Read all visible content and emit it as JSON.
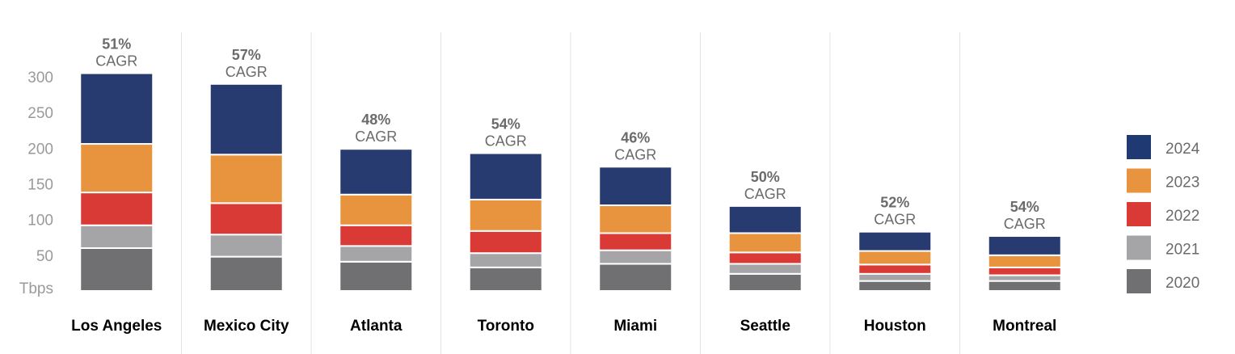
{
  "chart_data": {
    "type": "bar",
    "stacked": true,
    "yunit": "Tbps",
    "yticks": [
      "300",
      "250",
      "200",
      "150",
      "100",
      "50"
    ],
    "ylim": [
      0,
      300
    ],
    "categories": [
      "Los Angeles",
      "Mexico City",
      "Atlanta",
      "Toronto",
      "Miami",
      "Seattle",
      "Houston",
      "Montreal"
    ],
    "cagr": [
      {
        "pct": "51%",
        "label": "CAGR"
      },
      {
        "pct": "57%",
        "label": "CAGR"
      },
      {
        "pct": "48%",
        "label": "CAGR"
      },
      {
        "pct": "54%",
        "label": "CAGR"
      },
      {
        "pct": "46%",
        "label": "CAGR"
      },
      {
        "pct": "50%",
        "label": "CAGR"
      },
      {
        "pct": "52%",
        "label": "CAGR"
      },
      {
        "pct": "54%",
        "label": "CAGR"
      }
    ],
    "series": [
      {
        "name": "2020",
        "color": "#707073",
        "values": [
          60,
          48,
          41,
          33,
          38,
          24,
          14,
          14
        ]
      },
      {
        "name": "2021",
        "color": "#a5a5a8",
        "values": [
          32,
          31,
          22,
          20,
          19,
          14,
          10,
          8
        ]
      },
      {
        "name": "2022",
        "color": "#d93a35",
        "values": [
          46,
          44,
          29,
          31,
          24,
          16,
          13,
          11
        ]
      },
      {
        "name": "2023",
        "color": "#e8943e",
        "values": [
          68,
          68,
          43,
          44,
          39,
          27,
          19,
          17
        ]
      },
      {
        "name": "2024",
        "color": "#283b70",
        "values": [
          99,
          99,
          64,
          65,
          54,
          38,
          27,
          27
        ]
      }
    ],
    "legend": {
      "position": "right",
      "entries": [
        {
          "label": "2024",
          "color": "#1f3a73"
        },
        {
          "label": "2023",
          "color": "#e8943e"
        },
        {
          "label": "2022",
          "color": "#d93a35"
        },
        {
          "label": "2021",
          "color": "#a5a5a8"
        },
        {
          "label": "2020",
          "color": "#707073"
        }
      ]
    },
    "grid": false
  }
}
